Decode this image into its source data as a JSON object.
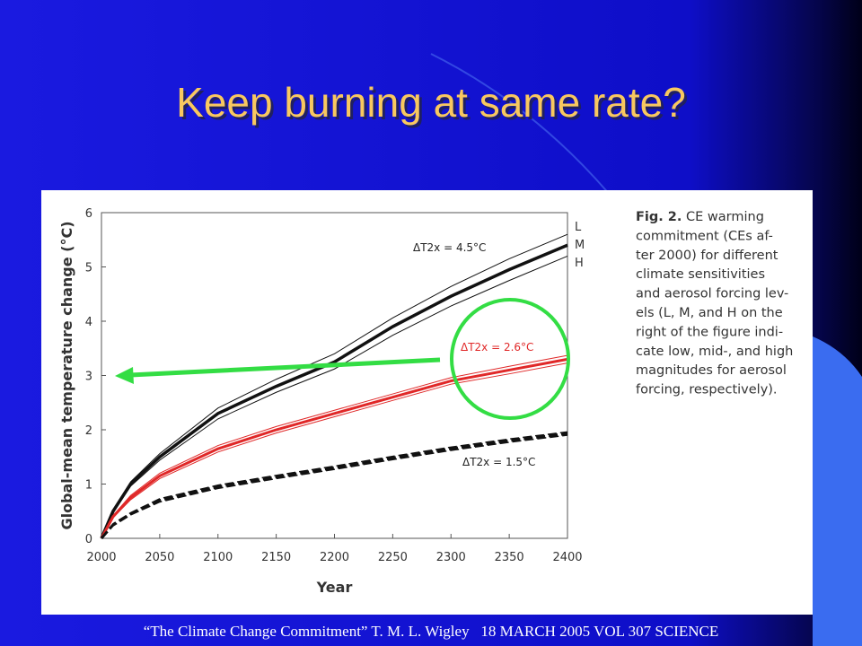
{
  "slide_title": "Keep burning at same rate?",
  "chart_data": {
    "type": "line",
    "x_label": "Year",
    "y_label": "Global-mean temperature change (°C)",
    "x": [
      2000,
      2010,
      2025,
      2050,
      2100,
      2150,
      2200,
      2250,
      2300,
      2350,
      2400
    ],
    "xlim": [
      2000,
      2400
    ],
    "xticks": [
      2000,
      2050,
      2100,
      2150,
      2200,
      2250,
      2300,
      2350,
      2400
    ],
    "ylim": [
      0,
      6
    ],
    "yticks": [
      0,
      1,
      2,
      3,
      4,
      5,
      6
    ],
    "grid": false,
    "series": [
      {
        "name": "L",
        "color": "#111111",
        "width": 1,
        "dashed": false,
        "values": [
          0,
          0.52,
          1.04,
          1.56,
          2.4,
          2.93,
          3.4,
          4.06,
          4.64,
          5.15,
          5.6
        ]
      },
      {
        "name": "M",
        "color": "#111111",
        "width": 3.5,
        "dashed": false,
        "values": [
          0,
          0.5,
          1.0,
          1.5,
          2.3,
          2.8,
          3.25,
          3.9,
          4.46,
          4.95,
          5.4
        ]
      },
      {
        "name": "H",
        "color": "#111111",
        "width": 1,
        "dashed": false,
        "values": [
          0,
          0.48,
          0.96,
          1.44,
          2.2,
          2.69,
          3.12,
          3.74,
          4.28,
          4.75,
          5.2
        ]
      },
      {
        "color": "#e02828",
        "width": 1,
        "dashed": false,
        "values": [
          0,
          0.42,
          0.79,
          1.2,
          1.71,
          2.06,
          2.36,
          2.66,
          2.96,
          3.17,
          3.37
        ]
      },
      {
        "color": "#e02828",
        "width": 3,
        "dashed": false,
        "values": [
          0,
          0.4,
          0.75,
          1.15,
          1.65,
          2.0,
          2.3,
          2.6,
          2.9,
          3.1,
          3.3
        ]
      },
      {
        "color": "#e02828",
        "width": 1,
        "dashed": false,
        "values": [
          0,
          0.38,
          0.71,
          1.1,
          1.59,
          1.94,
          2.24,
          2.54,
          2.84,
          3.03,
          3.23
        ]
      },
      {
        "color": "#111111",
        "width": 1.5,
        "dashed": true,
        "values": [
          0,
          0.27,
          0.47,
          0.73,
          0.98,
          1.16,
          1.33,
          1.51,
          1.68,
          1.83,
          1.96
        ]
      },
      {
        "color": "#111111",
        "width": 3,
        "dashed": true,
        "values": [
          0,
          0.25,
          0.45,
          0.7,
          0.95,
          1.13,
          1.3,
          1.48,
          1.65,
          1.8,
          1.93
        ]
      },
      {
        "color": "#111111",
        "width": 1.5,
        "dashed": true,
        "values": [
          0,
          0.23,
          0.43,
          0.67,
          0.92,
          1.1,
          1.27,
          1.45,
          1.62,
          1.77,
          1.9
        ]
      }
    ],
    "annotations": [
      {
        "text": "ΔT2x = 4.5°C",
        "color": "#222222"
      },
      {
        "text": "ΔT2x = 2.6°C",
        "color": "#e02828"
      },
      {
        "text": "ΔT2x = 1.5°C",
        "color": "#222222"
      }
    ]
  },
  "caption": {
    "label": "Fig. 2.",
    "lines": [
      " CE warming",
      "commitment (CEs af-",
      "ter 2000) for different",
      "climate sensitivities",
      "and aerosol forcing lev-",
      "els (L, M, and H on the",
      "right of the figure indi-",
      "cate low, mid-, and high",
      "magnitudes for aerosol",
      "forcing, respectively)."
    ]
  },
  "footer": "“The Climate Change Commitment” T. M. L. Wigley   18 MARCH 2005 VOL 307 SCIENCE"
}
